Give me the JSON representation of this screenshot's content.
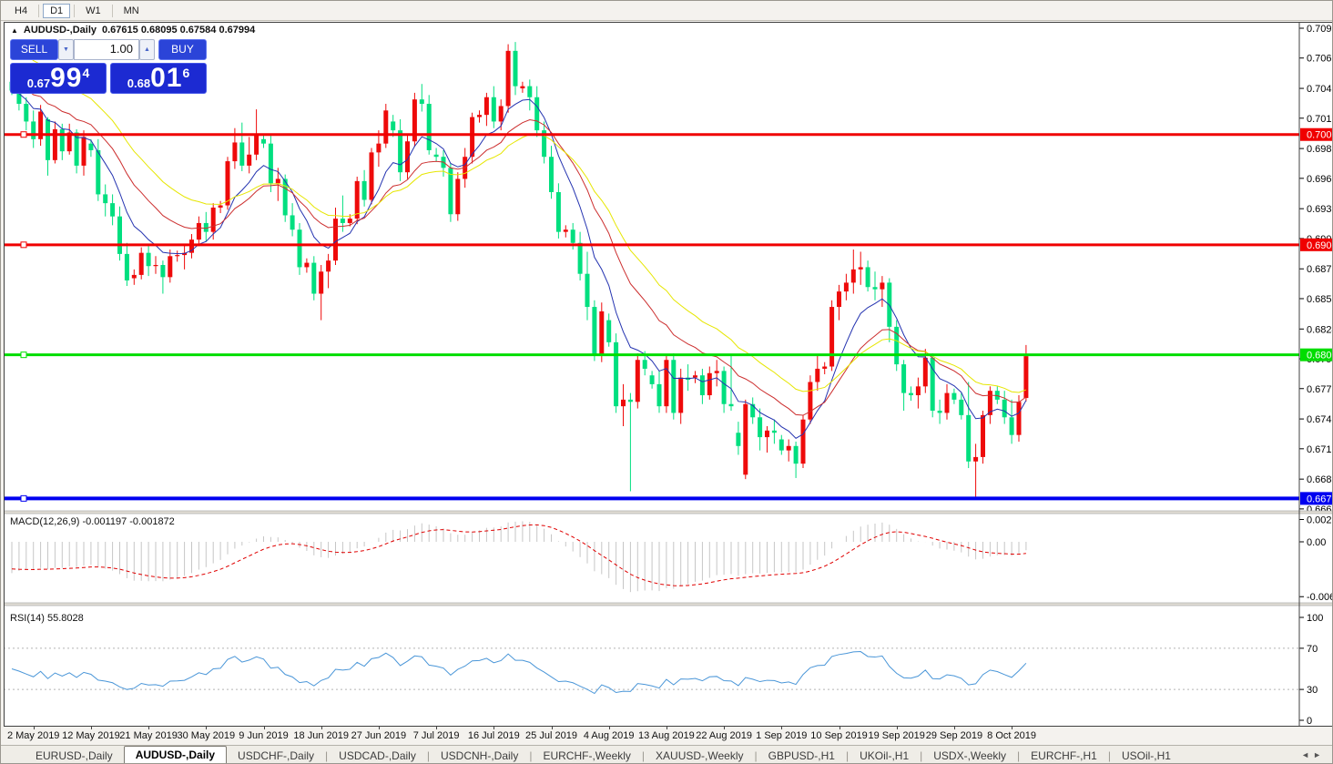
{
  "toolbar": {
    "timeframes": [
      {
        "label": "H4",
        "active": false
      },
      {
        "label": "D1",
        "active": true
      },
      {
        "label": "W1",
        "active": false
      },
      {
        "label": "MN",
        "active": false
      }
    ]
  },
  "chart_header": {
    "collapse_icon": "▲",
    "symbol": "AUDUSD-,Daily",
    "ohlc": "0.67615 0.68095 0.67584 0.67994"
  },
  "one_click": {
    "sell_label": "SELL",
    "buy_label": "BUY",
    "volume": "1.00",
    "volume_down_icon": "▼",
    "volume_up_icon": "▲",
    "sell_price_prefix": "0.67",
    "sell_price_big": "99",
    "sell_price_sup": "4",
    "buy_price_prefix": "0.68",
    "buy_price_big": "01",
    "buy_price_sup": "6"
  },
  "chart_data": {
    "type": "candlestick",
    "symbol": "AUDUSD-",
    "timeframe": "Daily",
    "ylim": [
      0.666,
      0.7102
    ],
    "price_axis_ticks": [
      "0.70965",
      "0.70695",
      "0.70420",
      "0.70150",
      "0.69875",
      "0.69605",
      "0.69330",
      "0.69060",
      "0.68785",
      "0.68515",
      "0.68240",
      "0.67970",
      "0.67700",
      "0.67425",
      "0.67155",
      "0.66880",
      "0.66610"
    ],
    "hlines": [
      {
        "price": 0.70002,
        "label": "0.70002",
        "color": "#f00000",
        "width": 3
      },
      {
        "price": 0.69003,
        "label": "0.69003",
        "color": "#f00000",
        "width": 3
      },
      {
        "price": 0.68006,
        "label": "0.68006",
        "color": "#00dd00",
        "width": 3
      },
      {
        "price": 0.66705,
        "label": "0.66705",
        "color": "#0000f0",
        "width": 4
      }
    ],
    "colors": {
      "bull_candle": "#ee0a0a",
      "bear_candle": "#00df7f",
      "macd_hist": "#c6c6c6",
      "macd_signal": "#e00000",
      "rsi_line": "#4a96d8",
      "level_dash": "#b4b4b4"
    },
    "moving_averages": [
      {
        "name": "ma-fast",
        "period": 8,
        "seed": 0.704,
        "color": "#2433b0"
      },
      {
        "name": "ma-mid",
        "period": 17,
        "seed": 0.7048,
        "color": "#cc2e2e"
      },
      {
        "name": "ma-slow",
        "period": 26,
        "seed": 0.7085,
        "color": "#e6e600"
      }
    ],
    "macd": {
      "label": "MACD(12,26,9) -0.001197 -0.001872",
      "fast": 12,
      "slow": 26,
      "signal": 9,
      "seed_fast_offset": -0.0012,
      "seed_slow_offset": 0.0028,
      "seed_signal": -0.003,
      "ticks": [
        {
          "v": 0.002574,
          "label": "0.002574"
        },
        {
          "v": 0.0,
          "label": "0.00"
        },
        {
          "v": -0.006326,
          "label": "-0.006326"
        }
      ]
    },
    "rsi": {
      "label": "RSI(14) 55.8028",
      "period": 14,
      "levels": [
        70,
        30
      ],
      "ticks": [
        {
          "v": 100,
          "label": "100"
        },
        {
          "v": 70,
          "label": "70"
        },
        {
          "v": 30,
          "label": "30"
        },
        {
          "v": 0,
          "label": "0"
        }
      ]
    },
    "date_ticks": [
      {
        "bar": 3,
        "label": "2 May 2019"
      },
      {
        "bar": 11,
        "label": "12 May 2019"
      },
      {
        "bar": 19,
        "label": "21 May 2019"
      },
      {
        "bar": 27,
        "label": "30 May 2019"
      },
      {
        "bar": 35,
        "label": "9 Jun 2019"
      },
      {
        "bar": 43,
        "label": "18 Jun 2019"
      },
      {
        "bar": 51,
        "label": "27 Jun 2019"
      },
      {
        "bar": 59,
        "label": "7 Jul 2019"
      },
      {
        "bar": 67,
        "label": "16 Jul 2019"
      },
      {
        "bar": 75,
        "label": "25 Jul 2019"
      },
      {
        "bar": 83,
        "label": "4 Aug 2019"
      },
      {
        "bar": 91,
        "label": "13 Aug 2019"
      },
      {
        "bar": 99,
        "label": "22 Aug 2019"
      },
      {
        "bar": 107,
        "label": "1 Sep 2019"
      },
      {
        "bar": 115,
        "label": "10 Sep 2019"
      },
      {
        "bar": 123,
        "label": "19 Sep 2019"
      },
      {
        "bar": 131,
        "label": "29 Sep 2019"
      },
      {
        "bar": 139,
        "label": "8 Oct 2019"
      }
    ],
    "candles": [
      [
        0.7048,
        0.7056,
        0.7036,
        0.704
      ],
      [
        0.704,
        0.7045,
        0.7022,
        0.7028
      ],
      [
        0.7028,
        0.7034,
        0.7004,
        0.7012
      ],
      [
        0.7012,
        0.7022,
        0.6988,
        0.6996
      ],
      [
        0.6996,
        0.7027,
        0.699,
        0.7021
      ],
      [
        0.7014,
        0.7016,
        0.6963,
        0.6977
      ],
      [
        0.6977,
        0.7012,
        0.6974,
        0.7005
      ],
      [
        0.7005,
        0.701,
        0.6977,
        0.6985
      ],
      [
        0.6985,
        0.701,
        0.6982,
        0.7002
      ],
      [
        0.7002,
        0.7005,
        0.6965,
        0.6972
      ],
      [
        0.6972,
        0.7004,
        0.6963,
        0.6998
      ],
      [
        0.6992,
        0.6996,
        0.698,
        0.6986
      ],
      [
        0.6986,
        0.6996,
        0.694,
        0.6946
      ],
      [
        0.6946,
        0.6955,
        0.6926,
        0.6938
      ],
      [
        0.6938,
        0.6946,
        0.6918,
        0.6926
      ],
      [
        0.6926,
        0.6935,
        0.6886,
        0.6892
      ],
      [
        0.6892,
        0.6902,
        0.6863,
        0.6868
      ],
      [
        0.687,
        0.6878,
        0.6864,
        0.6873
      ],
      [
        0.6873,
        0.6898,
        0.6869,
        0.6893
      ],
      [
        0.6893,
        0.69,
        0.6872,
        0.6881
      ],
      [
        0.6881,
        0.689,
        0.6874,
        0.6882
      ],
      [
        0.6882,
        0.6886,
        0.6856,
        0.6871
      ],
      [
        0.6871,
        0.6896,
        0.6866,
        0.689
      ],
      [
        0.689,
        0.6895,
        0.6885,
        0.6891
      ],
      [
        0.6891,
        0.69,
        0.6878,
        0.6893
      ],
      [
        0.6893,
        0.691,
        0.6888,
        0.6905
      ],
      [
        0.6905,
        0.6926,
        0.6899,
        0.692
      ],
      [
        0.692,
        0.693,
        0.6903,
        0.6912
      ],
      [
        0.6912,
        0.6938,
        0.6905,
        0.6934
      ],
      [
        0.6934,
        0.694,
        0.6929,
        0.6936
      ],
      [
        0.6936,
        0.698,
        0.6932,
        0.6976
      ],
      [
        0.6976,
        0.7006,
        0.6969,
        0.6993
      ],
      [
        0.6993,
        0.7011,
        0.6967,
        0.6972
      ],
      [
        0.6972,
        0.6998,
        0.6965,
        0.6982
      ],
      [
        0.6982,
        0.7023,
        0.6977,
        0.7
      ],
      [
        0.6996,
        0.7,
        0.6988,
        0.6992
      ],
      [
        0.6992,
        0.6999,
        0.6948,
        0.6956
      ],
      [
        0.6956,
        0.697,
        0.694,
        0.696
      ],
      [
        0.696,
        0.6964,
        0.6921,
        0.6927
      ],
      [
        0.6927,
        0.6938,
        0.6908,
        0.6914
      ],
      [
        0.6914,
        0.692,
        0.6873,
        0.688
      ],
      [
        0.688,
        0.6888,
        0.6875,
        0.6884
      ],
      [
        0.6884,
        0.689,
        0.685,
        0.6856
      ],
      [
        0.6856,
        0.6882,
        0.6832,
        0.6876
      ],
      [
        0.6876,
        0.6892,
        0.6861,
        0.6886
      ],
      [
        0.6886,
        0.6934,
        0.6882,
        0.6924
      ],
      [
        0.6924,
        0.6945,
        0.6912,
        0.692
      ],
      [
        0.692,
        0.6928,
        0.6917,
        0.6924
      ],
      [
        0.6924,
        0.6962,
        0.6919,
        0.6958
      ],
      [
        0.6958,
        0.6968,
        0.6935,
        0.6941
      ],
      [
        0.6941,
        0.6988,
        0.6937,
        0.6984
      ],
      [
        0.6984,
        0.7004,
        0.6971,
        0.6992
      ],
      [
        0.6992,
        0.7028,
        0.6988,
        0.7022
      ],
      [
        0.7012,
        0.7018,
        0.6998,
        0.7004
      ],
      [
        0.7004,
        0.7014,
        0.6958,
        0.6966
      ],
      [
        0.6966,
        0.7,
        0.696,
        0.6994
      ],
      [
        0.6994,
        0.7038,
        0.6989,
        0.7032
      ],
      [
        0.7032,
        0.7046,
        0.7021,
        0.7028
      ],
      [
        0.7028,
        0.7036,
        0.6982,
        0.6986
      ],
      [
        0.6982,
        0.6988,
        0.6976,
        0.698
      ],
      [
        0.698,
        0.6986,
        0.6962,
        0.697
      ],
      [
        0.697,
        0.6974,
        0.6921,
        0.6928
      ],
      [
        0.6928,
        0.6966,
        0.6922,
        0.696
      ],
      [
        0.696,
        0.6988,
        0.6952,
        0.698
      ],
      [
        0.698,
        0.702,
        0.6974,
        0.7016
      ],
      [
        0.7016,
        0.7022,
        0.7011,
        0.7018
      ],
      [
        0.7018,
        0.7038,
        0.7008,
        0.7034
      ],
      [
        0.7034,
        0.7044,
        0.7006,
        0.7012
      ],
      [
        0.7012,
        0.7032,
        0.7004,
        0.7026
      ],
      [
        0.7026,
        0.7082,
        0.702,
        0.7076
      ],
      [
        0.7076,
        0.7084,
        0.7036,
        0.7044
      ],
      [
        0.7042,
        0.7048,
        0.7038,
        0.7044
      ],
      [
        0.7044,
        0.705,
        0.7022,
        0.7034
      ],
      [
        0.7034,
        0.7044,
        0.6998,
        0.7004
      ],
      [
        0.7004,
        0.7012,
        0.6974,
        0.698
      ],
      [
        0.698,
        0.699,
        0.6942,
        0.6948
      ],
      [
        0.6948,
        0.6956,
        0.6906,
        0.6912
      ],
      [
        0.6912,
        0.6918,
        0.6907,
        0.6914
      ],
      [
        0.6914,
        0.692,
        0.6896,
        0.6902
      ],
      [
        0.6902,
        0.6912,
        0.6868,
        0.6874
      ],
      [
        0.6874,
        0.6894,
        0.6832,
        0.6844
      ],
      [
        0.6844,
        0.685,
        0.6795,
        0.68
      ],
      [
        0.68,
        0.6848,
        0.6794,
        0.684
      ],
      [
        0.6832,
        0.6838,
        0.6808,
        0.6812
      ],
      [
        0.6812,
        0.682,
        0.6748,
        0.6754
      ],
      [
        0.6754,
        0.6774,
        0.6736,
        0.676
      ],
      [
        0.676,
        0.6766,
        0.6677,
        0.6758
      ],
      [
        0.6758,
        0.6802,
        0.6752,
        0.6796
      ],
      [
        0.6796,
        0.6804,
        0.6782,
        0.6788
      ],
      [
        0.6782,
        0.6786,
        0.677,
        0.6774
      ],
      [
        0.6774,
        0.6786,
        0.6748,
        0.6754
      ],
      [
        0.6754,
        0.68,
        0.6748,
        0.6796
      ],
      [
        0.6796,
        0.6802,
        0.6742,
        0.6748
      ],
      [
        0.6748,
        0.6788,
        0.6738,
        0.678
      ],
      [
        0.678,
        0.6792,
        0.6768,
        0.6778
      ],
      [
        0.678,
        0.6786,
        0.6775,
        0.6782
      ],
      [
        0.6782,
        0.6788,
        0.6756,
        0.6764
      ],
      [
        0.6764,
        0.679,
        0.676,
        0.6784
      ],
      [
        0.6784,
        0.6796,
        0.6772,
        0.6786
      ],
      [
        0.6786,
        0.679,
        0.6748,
        0.6756
      ],
      [
        0.6756,
        0.68,
        0.675,
        0.6754
      ],
      [
        0.673,
        0.674,
        0.671,
        0.6718
      ],
      [
        0.6692,
        0.676,
        0.6688,
        0.6756
      ],
      [
        0.6756,
        0.6762,
        0.6738,
        0.6744
      ],
      [
        0.6744,
        0.6752,
        0.6714,
        0.6726
      ],
      [
        0.6726,
        0.6736,
        0.6712,
        0.6732
      ],
      [
        0.6732,
        0.6742,
        0.672,
        0.673
      ],
      [
        0.6724,
        0.6728,
        0.671,
        0.6714
      ],
      [
        0.6714,
        0.6724,
        0.6704,
        0.6718
      ],
      [
        0.6718,
        0.6722,
        0.6689,
        0.6702
      ],
      [
        0.6702,
        0.6746,
        0.6698,
        0.6742
      ],
      [
        0.6742,
        0.6782,
        0.6738,
        0.6776
      ],
      [
        0.6776,
        0.68,
        0.6768,
        0.6788
      ],
      [
        0.6788,
        0.6794,
        0.6783,
        0.679
      ],
      [
        0.679,
        0.685,
        0.6786,
        0.6844
      ],
      [
        0.6844,
        0.6864,
        0.6832,
        0.6858
      ],
      [
        0.6858,
        0.6874,
        0.685,
        0.6866
      ],
      [
        0.6866,
        0.6896,
        0.6856,
        0.6878
      ],
      [
        0.6878,
        0.6894,
        0.6864,
        0.688
      ],
      [
        0.688,
        0.6886,
        0.6858,
        0.6862
      ],
      [
        0.6862,
        0.6876,
        0.685,
        0.686
      ],
      [
        0.686,
        0.6872,
        0.6844,
        0.6866
      ],
      [
        0.6866,
        0.687,
        0.6812,
        0.6826
      ],
      [
        0.6826,
        0.6832,
        0.6786,
        0.6792
      ],
      [
        0.6792,
        0.6796,
        0.675,
        0.6766
      ],
      [
        0.6766,
        0.6772,
        0.6759,
        0.6764
      ],
      [
        0.6764,
        0.678,
        0.6752,
        0.6772
      ],
      [
        0.6772,
        0.6806,
        0.6766,
        0.6798
      ],
      [
        0.6798,
        0.6802,
        0.6744,
        0.675
      ],
      [
        0.675,
        0.676,
        0.6738,
        0.6748
      ],
      [
        0.6748,
        0.6774,
        0.6742,
        0.6766
      ],
      [
        0.6766,
        0.677,
        0.6756,
        0.676
      ],
      [
        0.676,
        0.6766,
        0.6742,
        0.6746
      ],
      [
        0.6746,
        0.6776,
        0.6698,
        0.6704
      ],
      [
        0.6704,
        0.672,
        0.667,
        0.6708
      ],
      [
        0.6708,
        0.675,
        0.6702,
        0.6746
      ],
      [
        0.6746,
        0.6772,
        0.6738,
        0.6768
      ],
      [
        0.6768,
        0.6772,
        0.6756,
        0.676
      ],
      [
        0.676,
        0.6768,
        0.6738,
        0.6744
      ],
      [
        0.6744,
        0.676,
        0.672,
        0.6728
      ],
      [
        0.6728,
        0.6764,
        0.6722,
        0.6758
      ],
      [
        0.67615,
        0.68095,
        0.67584,
        0.67994
      ]
    ]
  },
  "tabs": {
    "items": [
      {
        "label": "EURUSD-,Daily",
        "active": false
      },
      {
        "label": "AUDUSD-,Daily",
        "active": true
      },
      {
        "label": "USDCHF-,Daily",
        "active": false
      },
      {
        "label": "USDCAD-,Daily",
        "active": false
      },
      {
        "label": "USDCNH-,Daily",
        "active": false
      },
      {
        "label": "EURCHF-,Weekly",
        "active": false
      },
      {
        "label": "XAUUSD-,Weekly",
        "active": false
      },
      {
        "label": "GBPUSD-,H1",
        "active": false
      },
      {
        "label": "UKOil-,H1",
        "active": false
      },
      {
        "label": "USDX-,Weekly",
        "active": false
      },
      {
        "label": "EURCHF-,H1",
        "active": false
      },
      {
        "label": "USOil-,H1",
        "active": false
      }
    ],
    "scroll_left_icon": "◄",
    "scroll_right_icon": "►"
  }
}
